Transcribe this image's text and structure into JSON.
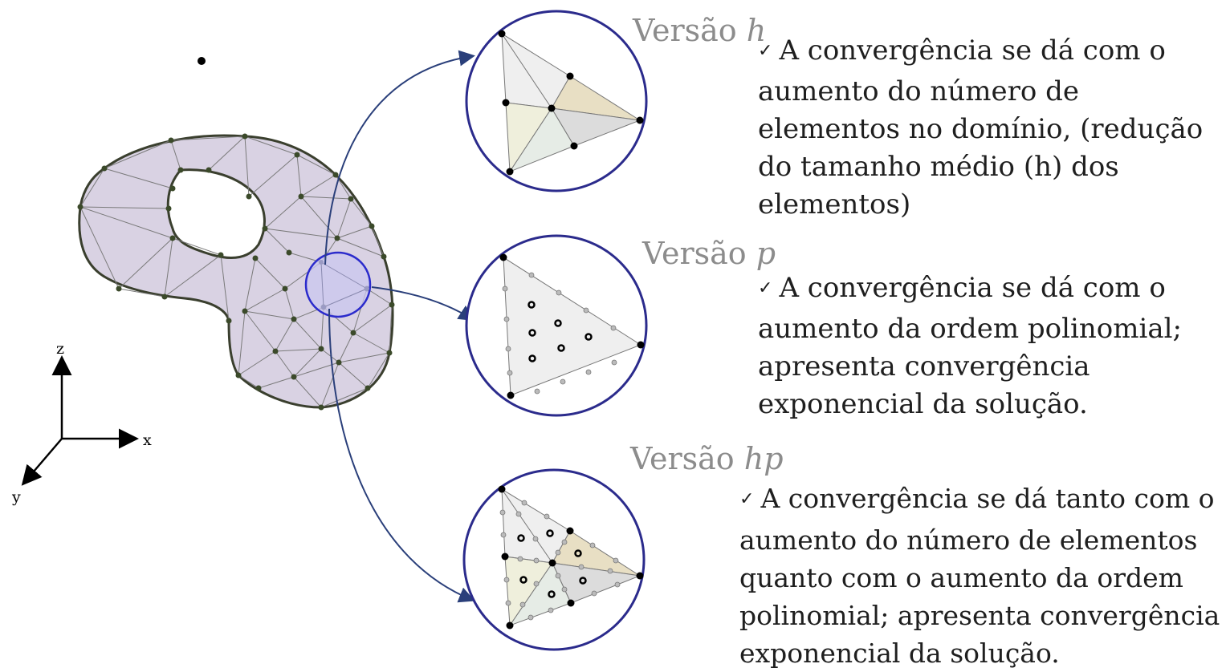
{
  "axes": {
    "z": "z",
    "x": "x",
    "y": "y"
  },
  "versions": [
    {
      "label_prefix": "Versão",
      "label_var": "h",
      "check": "✓",
      "lines": [
        "A convergência se dá com o",
        "aumento do número de",
        "elementos no domínio, (redução",
        "do tamanho médio (h) dos",
        "elementos)"
      ]
    },
    {
      "label_prefix": "Versão",
      "label_var": "p",
      "check": "✓",
      "lines": [
        "A convergência se dá com  o",
        "aumento da ordem polinomial;",
        "apresenta convergência",
        "exponencial  da solução."
      ]
    },
    {
      "label_prefix": "Versão",
      "label_var": "hp",
      "check": "✓",
      "lines": [
        "A convergência se dá tanto com o",
        "aumento do número de elementos",
        "quanto com o aumento da ordem",
        "polinomial; apresenta convergência",
        "exponencial  da solução."
      ]
    }
  ],
  "colors": {
    "domain_fill": "#d9d2e3",
    "domain_stroke": "#3a3f2e",
    "node": "#3b4a2a",
    "circle_stroke": "#2b2b8c",
    "zoom_fill": "#c9c7ef",
    "arrow": "#2a3f7a",
    "heading": "#8c8c8c"
  }
}
